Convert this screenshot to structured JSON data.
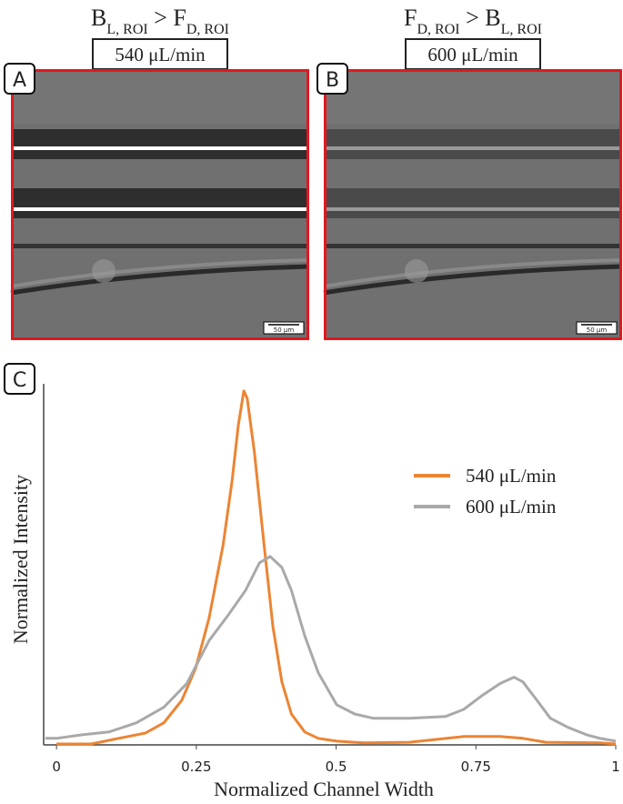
{
  "panels": [
    {
      "label": "A",
      "title": [
        "B",
        "L, ROI",
        " > F",
        "D, ROI"
      ],
      "flow": "540 μL/min",
      "scale": "50 μm"
    },
    {
      "label": "B",
      "title": [
        "F",
        "D, ROI",
        " > B",
        "L, ROI"
      ],
      "flow": "600 μL/min",
      "scale": "50 μm"
    }
  ],
  "chart_data": {
    "type": "line",
    "label": "C",
    "x_label": "Normalized Channel Width",
    "y_label": "Normalized Intensity",
    "xlim": [
      -0.023,
      1
    ],
    "ylim": [
      0,
      1.02
    ],
    "xticks": [
      0,
      0.25,
      0.5,
      0.75,
      1
    ],
    "legend": "upper right",
    "series": [
      {
        "name": "540 μL/min",
        "color": "#ec8433",
        "x": [
          0,
          0.062,
          0.111,
          0.159,
          0.192,
          0.224,
          0.249,
          0.273,
          0.298,
          0.314,
          0.325,
          0.335,
          0.341,
          0.354,
          0.371,
          0.387,
          0.403,
          0.42,
          0.444,
          0.468,
          0.501,
          0.55,
          0.631,
          0.728,
          0.793,
          0.834,
          0.875,
          0.972,
          1
        ],
        "values": [
          0,
          0,
          0.016,
          0.031,
          0.06,
          0.124,
          0.215,
          0.358,
          0.565,
          0.746,
          0.902,
          1,
          0.979,
          0.824,
          0.565,
          0.332,
          0.176,
          0.085,
          0.034,
          0.016,
          0.008,
          0.003,
          0.005,
          0.021,
          0.021,
          0.016,
          0.005,
          0.003,
          0
        ]
      },
      {
        "name": "600 μL/min",
        "color": "#a9a9a9",
        "x": [
          -0.02,
          0,
          0.046,
          0.094,
          0.143,
          0.192,
          0.233,
          0.273,
          0.306,
          0.338,
          0.363,
          0.382,
          0.403,
          0.42,
          0.444,
          0.468,
          0.501,
          0.533,
          0.566,
          0.631,
          0.696,
          0.728,
          0.761,
          0.793,
          0.818,
          0.834,
          0.859,
          0.883,
          0.915,
          0.948,
          0.972,
          1
        ],
        "values": [
          0.016,
          0.016,
          0.026,
          0.034,
          0.06,
          0.104,
          0.171,
          0.293,
          0.363,
          0.435,
          0.513,
          0.531,
          0.5,
          0.435,
          0.306,
          0.202,
          0.111,
          0.085,
          0.073,
          0.073,
          0.078,
          0.098,
          0.137,
          0.171,
          0.189,
          0.176,
          0.124,
          0.073,
          0.047,
          0.026,
          0.016,
          0.008
        ]
      }
    ]
  }
}
